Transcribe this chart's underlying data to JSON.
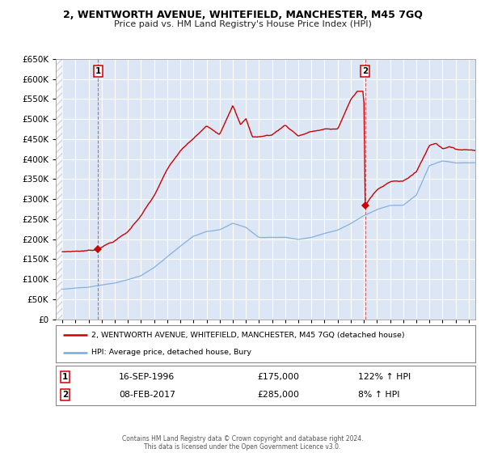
{
  "title": "2, WENTWORTH AVENUE, WHITEFIELD, MANCHESTER, M45 7GQ",
  "subtitle": "Price paid vs. HM Land Registry's House Price Index (HPI)",
  "background_color": "#ffffff",
  "plot_bg_color": "#dce6f5",
  "grid_color": "#ffffff",
  "red_color": "#cc0000",
  "blue_color": "#7aabdc",
  "sale1_date": 1996.71,
  "sale1_price": 175000,
  "sale2_date": 2017.1,
  "sale2_price": 285000,
  "legend_line1": "2, WENTWORTH AVENUE, WHITEFIELD, MANCHESTER, M45 7GQ (detached house)",
  "legend_line2": "HPI: Average price, detached house, Bury",
  "info1_date": "16-SEP-1996",
  "info1_price": "£175,000",
  "info1_hpi": "122% ↑ HPI",
  "info2_date": "08-FEB-2017",
  "info2_price": "£285,000",
  "info2_hpi": "8% ↑ HPI",
  "footer": "Contains HM Land Registry data © Crown copyright and database right 2024.\nThis data is licensed under the Open Government Licence v3.0.",
  "ylim": [
    0,
    650000
  ],
  "yticks": [
    0,
    50000,
    100000,
    150000,
    200000,
    250000,
    300000,
    350000,
    400000,
    450000,
    500000,
    550000,
    600000,
    650000
  ],
  "xlim_start": 1993.5,
  "xlim_end": 2025.5,
  "hpi_key_years": [
    1994,
    1995,
    1996,
    1997,
    1998,
    1999,
    2000,
    2001,
    2002,
    2003,
    2004,
    2005,
    2006,
    2007,
    2008,
    2009,
    2010,
    2011,
    2012,
    2013,
    2014,
    2015,
    2016,
    2017,
    2018,
    2019,
    2020,
    2021,
    2022,
    2023,
    2024,
    2025
  ],
  "hpi_key_vals": [
    75000,
    78000,
    80000,
    85000,
    90000,
    98000,
    108000,
    128000,
    155000,
    182000,
    207000,
    218000,
    222000,
    238000,
    228000,
    203000,
    203000,
    203000,
    198000,
    203000,
    213000,
    222000,
    238000,
    258000,
    273000,
    283000,
    283000,
    308000,
    382000,
    393000,
    388000,
    388000
  ],
  "prop_key_years": [
    1994,
    1995,
    1996,
    1996.71,
    1997,
    1998,
    1999,
    2000,
    2001,
    2002,
    2003,
    2004,
    2005,
    2006,
    2007,
    2007.6,
    2008,
    2008.5,
    2009,
    2010,
    2011,
    2012,
    2013,
    2014,
    2015,
    2016,
    2016.5,
    2017.0,
    2017.09,
    2017.1,
    2017.15,
    2017.5,
    2018,
    2019,
    2020,
    2021,
    2022,
    2022.5,
    2023,
    2023.5,
    2024,
    2025
  ],
  "prop_key_vals": [
    168000,
    170000,
    172000,
    175000,
    183000,
    198000,
    220000,
    262000,
    310000,
    375000,
    420000,
    450000,
    480000,
    462000,
    538000,
    488000,
    503000,
    458000,
    458000,
    463000,
    488000,
    462000,
    473000,
    478000,
    478000,
    552000,
    572000,
    572000,
    285000,
    285000,
    288000,
    305000,
    328000,
    348000,
    348000,
    372000,
    438000,
    445000,
    432000,
    438000,
    430000,
    430000
  ]
}
